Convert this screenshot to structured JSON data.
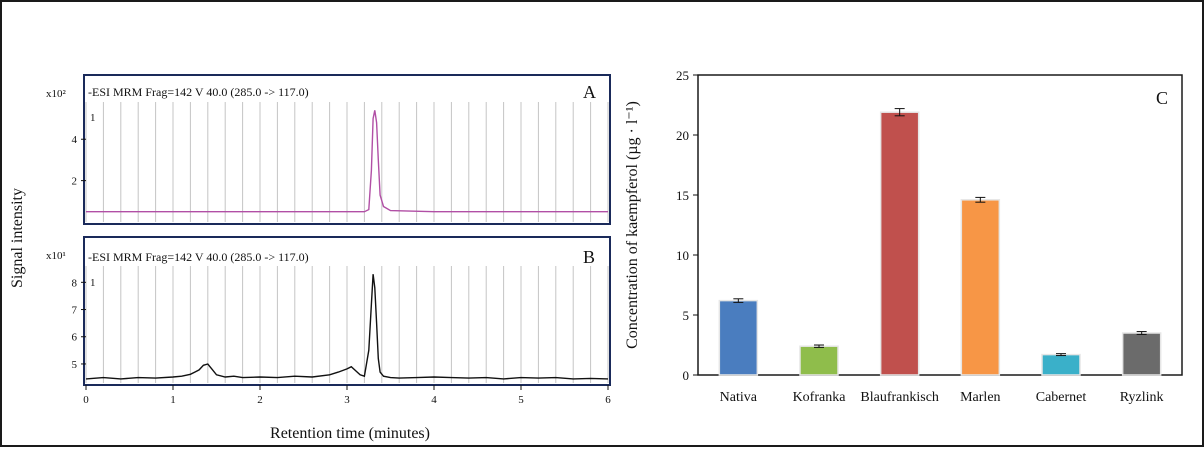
{
  "y_label_shared": "Signal intensity",
  "x_label_shared": "Retention time (minutes)",
  "chart_data": [
    {
      "type": "line",
      "panel": "A",
      "header": "-ESI MRM Frag=142 V 40.0 (285.0 -> 117.0)",
      "scale": "x10²",
      "index_label": "1",
      "color": "#b14fa5",
      "xlim": [
        0,
        6
      ],
      "ylim": [
        0,
        5.8
      ],
      "y_ticks": [
        "4",
        "2"
      ],
      "y_tick_values": [
        4,
        2
      ],
      "x": [
        0,
        0.5,
        1.0,
        1.5,
        2.0,
        2.5,
        3.0,
        3.2,
        3.25,
        3.28,
        3.3,
        3.32,
        3.34,
        3.36,
        3.38,
        3.42,
        3.5,
        4.0,
        4.5,
        5.0,
        5.5,
        6.0
      ],
      "y": [
        0.5,
        0.5,
        0.5,
        0.5,
        0.5,
        0.5,
        0.5,
        0.5,
        0.6,
        2.5,
        5.0,
        5.4,
        4.8,
        3.0,
        1.3,
        0.75,
        0.55,
        0.5,
        0.5,
        0.5,
        0.5,
        0.5
      ]
    },
    {
      "type": "line",
      "panel": "B",
      "header": "-ESI MRM Frag=142 V 40.0 (285.0 -> 117.0)",
      "scale": "x10¹",
      "index_label": "1",
      "color": "#111111",
      "xlim": [
        0,
        6
      ],
      "ylim": [
        4.3,
        8.6
      ],
      "y_ticks": [
        "8",
        "7",
        "6",
        "5"
      ],
      "y_tick_values": [
        8,
        7,
        6,
        5
      ],
      "x_ticks": [
        "0",
        "1",
        "2",
        "3",
        "4",
        "5",
        "6"
      ],
      "x_tick_values": [
        0,
        1,
        2,
        3,
        4,
        5,
        6
      ],
      "x": [
        0,
        0.2,
        0.4,
        0.6,
        0.8,
        1.0,
        1.1,
        1.2,
        1.25,
        1.3,
        1.35,
        1.4,
        1.45,
        1.5,
        1.6,
        1.7,
        1.8,
        2.0,
        2.2,
        2.4,
        2.6,
        2.8,
        2.9,
        3.0,
        3.05,
        3.1,
        3.15,
        3.2,
        3.25,
        3.28,
        3.3,
        3.32,
        3.34,
        3.36,
        3.38,
        3.42,
        3.5,
        3.6,
        3.8,
        4.0,
        4.2,
        4.4,
        4.6,
        4.8,
        5.0,
        5.2,
        5.4,
        5.6,
        5.8,
        6.0
      ],
      "y": [
        4.45,
        4.5,
        4.45,
        4.5,
        4.48,
        4.52,
        4.55,
        4.62,
        4.7,
        4.78,
        4.95,
        5.0,
        4.8,
        4.6,
        4.52,
        4.55,
        4.5,
        4.52,
        4.5,
        4.55,
        4.52,
        4.6,
        4.7,
        4.82,
        4.9,
        4.75,
        4.6,
        4.55,
        5.5,
        7.2,
        8.3,
        7.8,
        6.5,
        5.2,
        4.7,
        4.55,
        4.5,
        4.48,
        4.5,
        4.52,
        4.5,
        4.48,
        4.5,
        4.45,
        4.5,
        4.48,
        4.5,
        4.45,
        4.47,
        4.45
      ]
    },
    {
      "type": "bar",
      "panel": "C",
      "ylabel": "Concentration of kaempferol (µg · l⁻¹)",
      "ylim": [
        0,
        25
      ],
      "y_ticks": [
        "0",
        "5",
        "10",
        "15",
        "20",
        "25"
      ],
      "y_tick_values": [
        0,
        5,
        10,
        15,
        20,
        25
      ],
      "categories": [
        "Nativa",
        "Kofranka",
        "Blaufrankisch",
        "Marlen",
        "Cabernet",
        "Ryzlink"
      ],
      "values": [
        6.2,
        2.4,
        21.9,
        14.6,
        1.7,
        3.5
      ],
      "errors": [
        0.15,
        0.1,
        0.3,
        0.2,
        0.08,
        0.12
      ],
      "colors": [
        "#4a7dbf",
        "#8fbd4b",
        "#c0504d",
        "#f79646",
        "#3ab0c9",
        "#6b6b6b"
      ]
    }
  ]
}
